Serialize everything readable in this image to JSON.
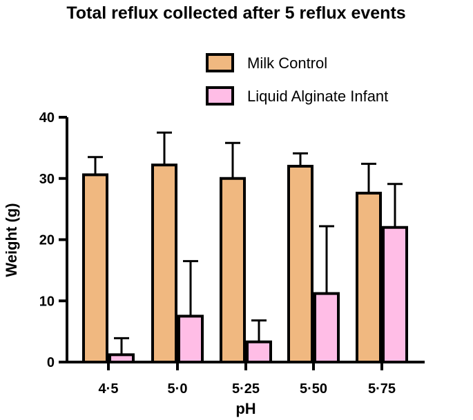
{
  "chart_data": {
    "type": "bar",
    "title": "Total reflux collected after 5 reflux events",
    "xlabel": "pH",
    "ylabel": "Weight (g)",
    "ylim": [
      0,
      40
    ],
    "yticks": [
      "0",
      "10",
      "20",
      "30",
      "40"
    ],
    "categories": [
      "4·5",
      "5·0",
      "5·25",
      "5·50",
      "5·75"
    ],
    "series": [
      {
        "name": "Milk Control",
        "color": "#f0b880",
        "values": [
          30.6,
          32.2,
          30.0,
          32.0,
          27.6
        ],
        "error": [
          2.9,
          5.3,
          5.8,
          2.1,
          4.8
        ]
      },
      {
        "name": "Liquid Alginate Infant",
        "color": "#ffbde6",
        "values": [
          1.2,
          7.5,
          3.3,
          11.2,
          22.0
        ],
        "error": [
          2.7,
          9.0,
          3.5,
          11.0,
          7.1
        ]
      }
    ],
    "legend_position": "top-right",
    "grid": false
  }
}
